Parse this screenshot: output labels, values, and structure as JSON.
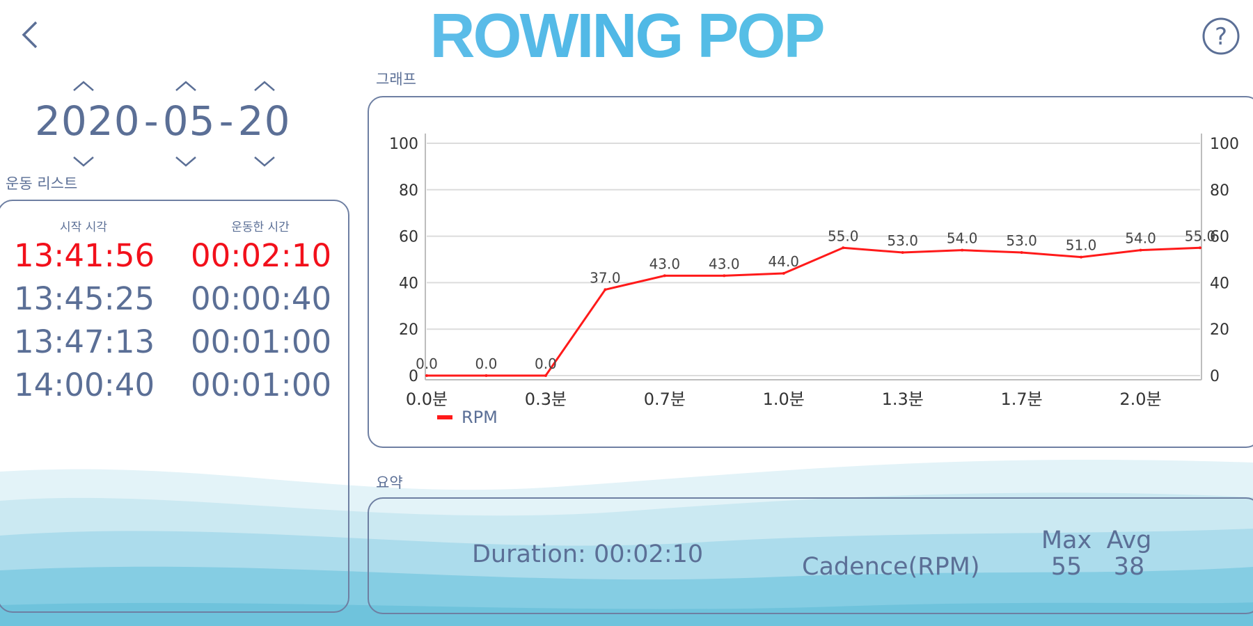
{
  "header": {
    "title": "ROWING POP",
    "back_icon": "chevron-left-icon",
    "help_icon": "question-circle-icon"
  },
  "date": {
    "year": "2020",
    "month": "05",
    "day": "20",
    "separator": "-"
  },
  "workout_list": {
    "label": "운동 리스트",
    "columns": {
      "start_time": "시작 시각",
      "duration": "운동한 시간"
    },
    "rows": [
      {
        "start": "13:41:56",
        "duration": "00:02:10",
        "selected": true
      },
      {
        "start": "13:45:25",
        "duration": "00:00:40",
        "selected": false
      },
      {
        "start": "13:47:13",
        "duration": "00:01:00",
        "selected": false
      },
      {
        "start": "14:00:40",
        "duration": "00:01:00",
        "selected": false
      }
    ]
  },
  "graph": {
    "label": "그래프"
  },
  "chart_data": {
    "type": "line",
    "x": [
      "0.0분",
      "0.15",
      "0.3분",
      "0.5",
      "0.7분",
      "0.85",
      "1.0분",
      "1.15",
      "1.3분",
      "1.5",
      "1.7분",
      "1.85",
      "2.0분",
      "2.17"
    ],
    "x_tick_labels": [
      "0.0분",
      "0.3분",
      "0.7분",
      "1.0분",
      "1.3분",
      "1.7분",
      "2.0분"
    ],
    "series": [
      {
        "name": "RPM",
        "color": "#ff1a1a",
        "values": [
          0.0,
          0.0,
          0.0,
          37.0,
          43.0,
          43.0,
          44.0,
          55.0,
          53.0,
          54.0,
          53.0,
          51.0,
          54.0,
          55.0
        ],
        "labels": [
          "0.0",
          "0.0",
          "0.0",
          "37.0",
          "43.0",
          "43.0",
          "44.0",
          "55.0",
          "53.0",
          "54.0",
          "53.0",
          "51.0",
          "54.0",
          "55.0"
        ]
      }
    ],
    "y_left_ticks": [
      "100",
      "80",
      "60",
      "40",
      "20",
      "0"
    ],
    "y_right_ticks": [
      "100",
      "80",
      "60",
      "40",
      "20",
      "0"
    ],
    "ylim": [
      0,
      100
    ],
    "grid": true,
    "legend": "bottom-left"
  },
  "summary": {
    "label": "요약",
    "duration_label": "Duration:",
    "duration_value": "00:02:10",
    "cadence_label": "Cadence(RPM)",
    "max_label": "Max",
    "avg_label": "Avg",
    "max_value": "55",
    "avg_value": "38"
  },
  "colors": {
    "text": "#5b6f96",
    "selected": "#f2101b",
    "line": "#ff1a1a",
    "panel_border": "#6e7fa2"
  }
}
